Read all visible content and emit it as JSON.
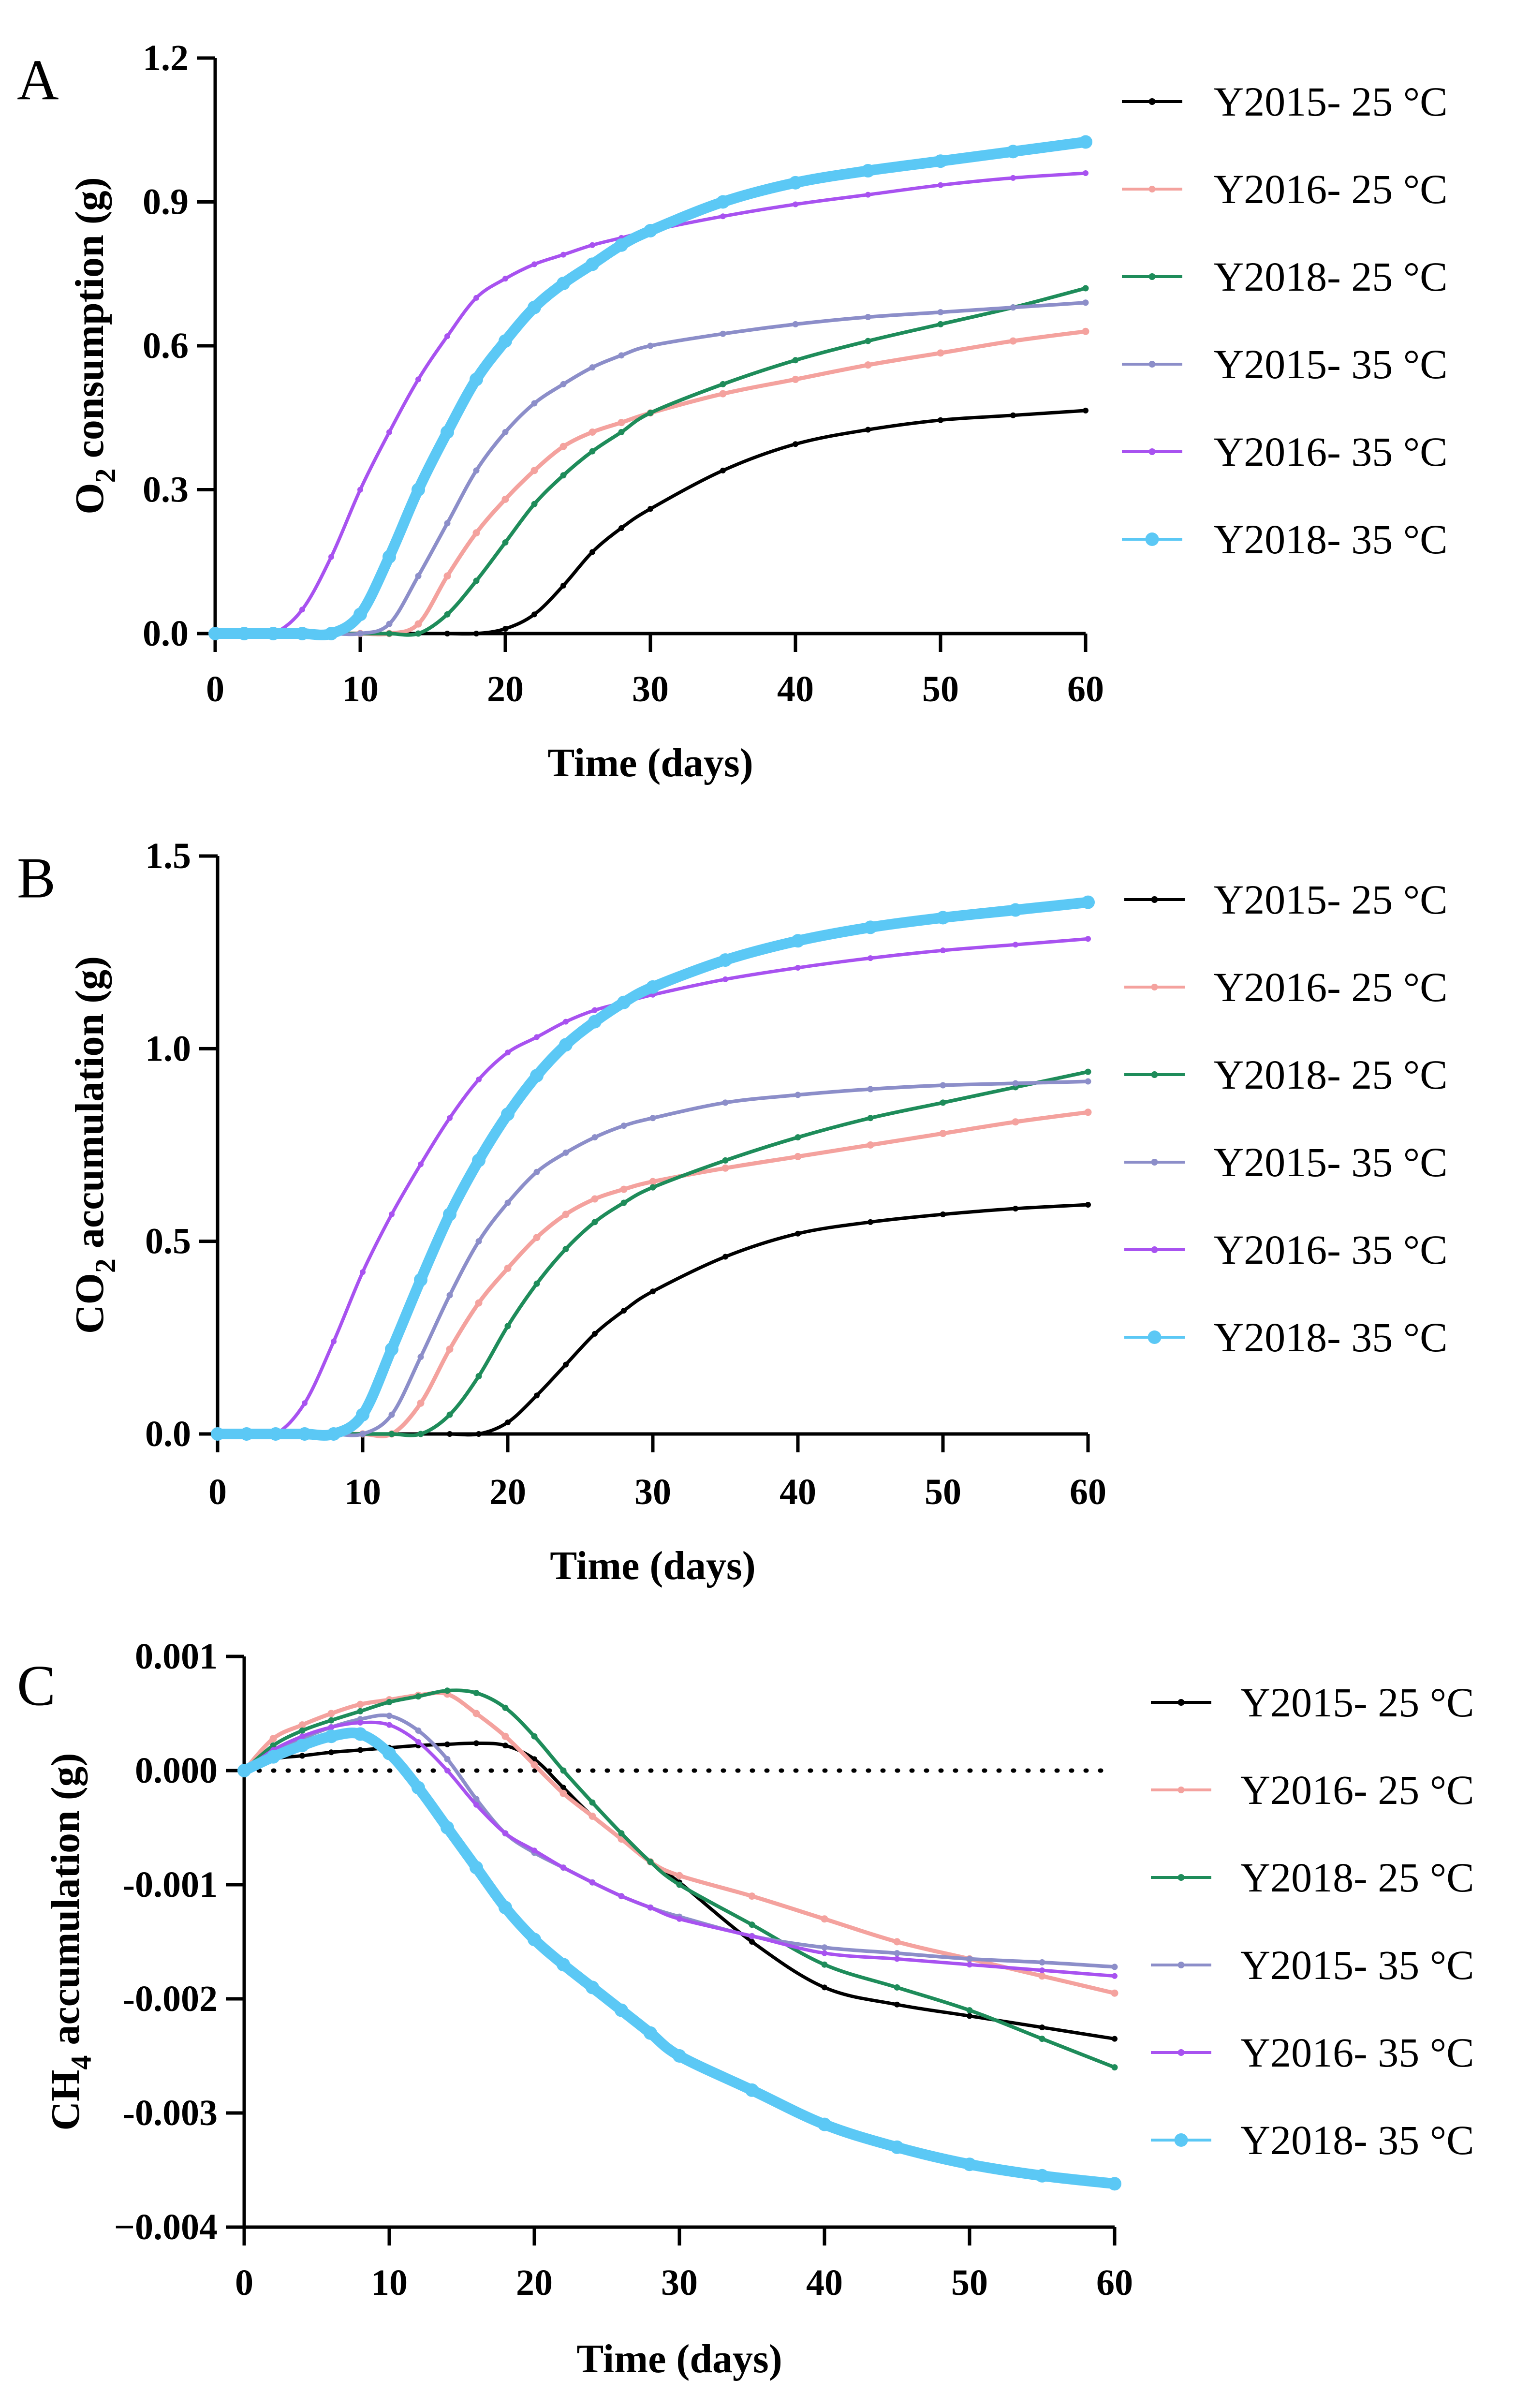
{
  "chart_data": [
    {
      "panel": "A",
      "type": "line",
      "ylabel": "O2 consumption (g)",
      "ylabel_main": "O",
      "ylabel_sub": "2",
      "ylabel_rest": " consumption (g)",
      "xlabel": "Time (days)",
      "xlim": [
        0,
        60
      ],
      "ylim": [
        0,
        1.2
      ],
      "xticks": [
        "0",
        "10",
        "20",
        "30",
        "40",
        "50",
        "60"
      ],
      "yticks": [
        "0.0",
        "0.3",
        "0.6",
        "0.9",
        "1.2"
      ],
      "zero_line": false,
      "x": [
        0,
        2,
        4,
        6,
        8,
        10,
        12,
        14,
        16,
        18,
        20,
        22,
        24,
        26,
        28,
        30,
        35,
        40,
        45,
        50,
        55,
        60
      ],
      "series": [
        {
          "name": "Y2015- 25 °C",
          "color": "#000000",
          "marker": 2,
          "values": [
            0,
            0,
            0,
            0,
            0,
            0,
            0,
            0,
            0,
            0,
            0.01,
            0.04,
            0.1,
            0.17,
            0.22,
            0.26,
            0.34,
            0.395,
            0.425,
            0.445,
            0.455,
            0.465
          ]
        },
        {
          "name": "Y2016- 25 °C",
          "color": "#f4a29e",
          "marker": 3.5,
          "values": [
            0,
            0,
            0,
            0,
            0,
            0,
            0,
            0.02,
            0.12,
            0.21,
            0.28,
            0.34,
            0.39,
            0.42,
            0.44,
            0.46,
            0.5,
            0.53,
            0.56,
            0.585,
            0.61,
            0.63
          ]
        },
        {
          "name": "Y2018- 25 °C",
          "color": "#1e8c5a",
          "marker": 2.5,
          "values": [
            0,
            0,
            0,
            0,
            0,
            0,
            0,
            0,
            0.04,
            0.11,
            0.19,
            0.27,
            0.33,
            0.38,
            0.42,
            0.46,
            0.52,
            0.57,
            0.61,
            0.645,
            0.68,
            0.72
          ]
        },
        {
          "name": "Y2015- 35 °C",
          "color": "#8c8ec9",
          "marker": 2.5,
          "values": [
            0,
            0,
            0,
            0,
            0,
            0,
            0.02,
            0.12,
            0.23,
            0.34,
            0.42,
            0.48,
            0.52,
            0.555,
            0.58,
            0.6,
            0.625,
            0.645,
            0.66,
            0.67,
            0.68,
            0.69
          ]
        },
        {
          "name": "Y2016- 35 °C",
          "color": "#a852f0",
          "marker": 2,
          "values": [
            0,
            0,
            0,
            0.05,
            0.16,
            0.3,
            0.42,
            0.53,
            0.62,
            0.7,
            0.74,
            0.77,
            0.79,
            0.81,
            0.825,
            0.84,
            0.87,
            0.895,
            0.915,
            0.935,
            0.95,
            0.96
          ]
        },
        {
          "name": "Y2018- 35 °C",
          "color": "#5bc8f5",
          "marker": 9,
          "values": [
            0,
            0,
            0,
            0,
            0,
            0.04,
            0.16,
            0.3,
            0.42,
            0.53,
            0.61,
            0.68,
            0.73,
            0.77,
            0.81,
            0.84,
            0.9,
            0.94,
            0.965,
            0.985,
            1.005,
            1.025
          ]
        }
      ]
    },
    {
      "panel": "B",
      "type": "line",
      "ylabel": "CO2 accumulation (g)",
      "ylabel_main": "CO",
      "ylabel_sub": "2",
      "ylabel_rest": " accumulation (g)",
      "xlabel": "Time (days)",
      "xlim": [
        0,
        60
      ],
      "ylim": [
        0,
        1.5
      ],
      "xticks": [
        "0",
        "10",
        "20",
        "30",
        "40",
        "50",
        "60"
      ],
      "yticks": [
        "0.0",
        "0.5",
        "1.0",
        "1.5"
      ],
      "zero_line": false,
      "x": [
        0,
        2,
        4,
        6,
        8,
        10,
        12,
        14,
        16,
        18,
        20,
        22,
        24,
        26,
        28,
        30,
        35,
        40,
        45,
        50,
        55,
        60
      ],
      "series": [
        {
          "name": "Y2015- 25 °C",
          "color": "#000000",
          "marker": 2,
          "values": [
            0,
            0,
            0,
            0,
            0,
            0,
            0,
            0,
            0,
            0,
            0.03,
            0.1,
            0.18,
            0.26,
            0.32,
            0.37,
            0.46,
            0.52,
            0.55,
            0.57,
            0.585,
            0.595
          ]
        },
        {
          "name": "Y2016- 25 °C",
          "color": "#f4a29e",
          "marker": 3.5,
          "values": [
            0,
            0,
            0,
            0,
            0,
            0,
            0,
            0.08,
            0.22,
            0.34,
            0.43,
            0.51,
            0.57,
            0.61,
            0.635,
            0.655,
            0.69,
            0.72,
            0.75,
            0.78,
            0.81,
            0.835
          ]
        },
        {
          "name": "Y2018- 25 °C",
          "color": "#1e8c5a",
          "marker": 2.5,
          "values": [
            0,
            0,
            0,
            0,
            0,
            0,
            0,
            0,
            0.05,
            0.15,
            0.28,
            0.39,
            0.48,
            0.55,
            0.6,
            0.64,
            0.71,
            0.77,
            0.82,
            0.86,
            0.9,
            0.94
          ]
        },
        {
          "name": "Y2015- 35 °C",
          "color": "#8c8ec9",
          "marker": 2.5,
          "values": [
            0,
            0,
            0,
            0,
            0,
            0,
            0.05,
            0.2,
            0.36,
            0.5,
            0.6,
            0.68,
            0.73,
            0.77,
            0.8,
            0.82,
            0.86,
            0.88,
            0.895,
            0.905,
            0.91,
            0.915
          ]
        },
        {
          "name": "Y2016- 35 °C",
          "color": "#a852f0",
          "marker": 2,
          "values": [
            0,
            0,
            0,
            0.08,
            0.24,
            0.42,
            0.57,
            0.7,
            0.82,
            0.92,
            0.99,
            1.03,
            1.07,
            1.1,
            1.12,
            1.14,
            1.18,
            1.21,
            1.235,
            1.255,
            1.27,
            1.285
          ]
        },
        {
          "name": "Y2018- 35 °C",
          "color": "#5bc8f5",
          "marker": 9,
          "values": [
            0,
            0,
            0,
            0,
            0,
            0.05,
            0.22,
            0.4,
            0.57,
            0.71,
            0.83,
            0.93,
            1.01,
            1.07,
            1.12,
            1.16,
            1.23,
            1.28,
            1.315,
            1.34,
            1.36,
            1.38
          ]
        }
      ]
    },
    {
      "panel": "C",
      "type": "line",
      "ylabel": "CH4 accumulation (g)",
      "ylabel_main": "CH",
      "ylabel_sub": "4",
      "ylabel_rest": " accumulation (g)",
      "xlabel": "Time (days)",
      "xlim": [
        0,
        60
      ],
      "ylim": [
        -0.004,
        0.001
      ],
      "xticks": [
        "0",
        "10",
        "20",
        "30",
        "40",
        "50",
        "60"
      ],
      "yticks": [
        "−0.004",
        "-0.003",
        "-0.002",
        "-0.001",
        "0.000",
        "0.001"
      ],
      "zero_line": true,
      "x": [
        0,
        2,
        4,
        6,
        8,
        10,
        12,
        14,
        16,
        18,
        20,
        22,
        24,
        26,
        28,
        30,
        35,
        40,
        45,
        50,
        55,
        60
      ],
      "series": [
        {
          "name": "Y2015- 25 °C",
          "color": "#000000",
          "marker": 2,
          "values": [
            0,
            0.0001,
            0.00013,
            0.00016,
            0.00018,
            0.0002,
            0.00022,
            0.00023,
            0.00024,
            0.00022,
            0.0001,
            -0.00015,
            -0.0004,
            -0.0006,
            -0.0008,
            -0.00098,
            -0.0015,
            -0.0019,
            -0.00205,
            -0.00215,
            -0.00225,
            -0.00235
          ]
        },
        {
          "name": "Y2016- 25 °C",
          "color": "#f4a29e",
          "marker": 3.5,
          "values": [
            0,
            0.00028,
            0.0004,
            0.0005,
            0.00058,
            0.00062,
            0.00066,
            0.00067,
            0.0005,
            0.0003,
            5e-05,
            -0.0002,
            -0.0004,
            -0.0006,
            -0.0008,
            -0.00092,
            -0.0011,
            -0.0013,
            -0.0015,
            -0.00165,
            -0.0018,
            -0.00195
          ]
        },
        {
          "name": "Y2018- 25 °C",
          "color": "#1e8c5a",
          "marker": 2.5,
          "values": [
            0,
            0.00022,
            0.00035,
            0.00044,
            0.00052,
            0.0006,
            0.00065,
            0.0007,
            0.00068,
            0.00055,
            0.0003,
            0.0,
            -0.00028,
            -0.00055,
            -0.0008,
            -0.001,
            -0.00135,
            -0.0017,
            -0.0019,
            -0.0021,
            -0.00235,
            -0.0026
          ]
        },
        {
          "name": "Y2015- 35 °C",
          "color": "#8c8ec9",
          "marker": 2.5,
          "values": [
            0,
            0.00015,
            0.00028,
            0.00038,
            0.00045,
            0.00048,
            0.00035,
            0.0001,
            -0.00025,
            -0.00055,
            -0.00072,
            -0.00085,
            -0.00098,
            -0.0011,
            -0.0012,
            -0.00128,
            -0.00145,
            -0.00155,
            -0.0016,
            -0.00165,
            -0.00168,
            -0.00172
          ]
        },
        {
          "name": "Y2016- 35 °C",
          "color": "#a852f0",
          "marker": 2,
          "values": [
            0,
            0.00018,
            0.0003,
            0.00038,
            0.00042,
            0.0004,
            0.00025,
            0.0,
            -0.0003,
            -0.00055,
            -0.0007,
            -0.00085,
            -0.00098,
            -0.0011,
            -0.0012,
            -0.0013,
            -0.00145,
            -0.0016,
            -0.00165,
            -0.0017,
            -0.00175,
            -0.0018
          ]
        },
        {
          "name": "Y2018- 35 °C",
          "color": "#5bc8f5",
          "marker": 9,
          "values": [
            0,
            0.00012,
            0.00022,
            0.0003,
            0.00032,
            0.00015,
            -0.00015,
            -0.0005,
            -0.00085,
            -0.0012,
            -0.00148,
            -0.0017,
            -0.0019,
            -0.0021,
            -0.0023,
            -0.0025,
            -0.0028,
            -0.0031,
            -0.0033,
            -0.00345,
            -0.00355,
            -0.00362
          ]
        }
      ]
    }
  ]
}
